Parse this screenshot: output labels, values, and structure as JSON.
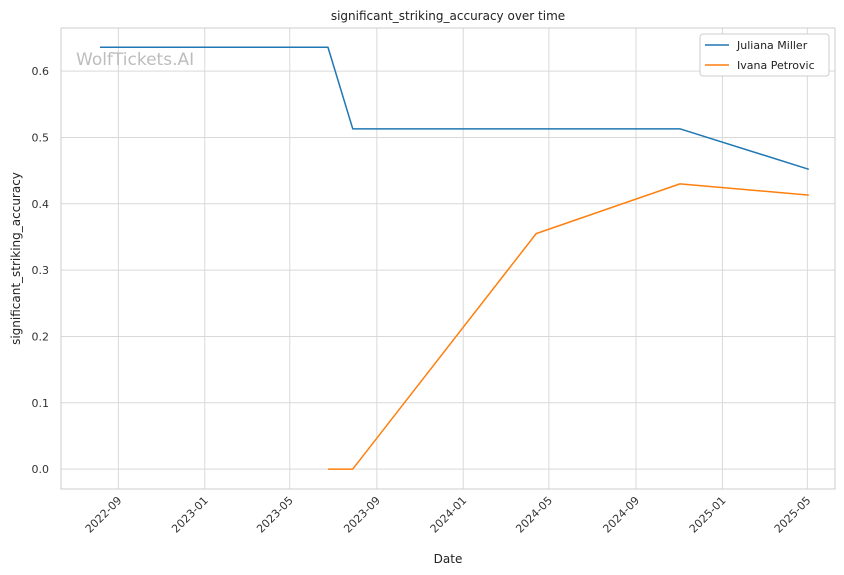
{
  "chart_data": {
    "type": "line",
    "title": "significant_striking_accuracy over time",
    "xlabel": "Date",
    "ylabel": "significant_striking_accuracy",
    "watermark": "WolfTickets.AI",
    "x_tick_labels": [
      "2022-09",
      "2023-01",
      "2023-05",
      "2023-09",
      "2024-01",
      "2024-05",
      "2024-09",
      "2025-01",
      "2025-05"
    ],
    "x_tick_dates": [
      "2022-09-01",
      "2023-01-01",
      "2023-05-01",
      "2023-09-01",
      "2024-01-01",
      "2024-05-01",
      "2024-09-01",
      "2025-01-01",
      "2025-05-01"
    ],
    "xlim": [
      "2022-06-12",
      "2025-06-09"
    ],
    "y_ticks": [
      "0.0",
      "0.1",
      "0.2",
      "0.3",
      "0.4",
      "0.5",
      "0.6"
    ],
    "ylim": [
      -0.03,
      0.665
    ],
    "grid": true,
    "legend_position": "top-right",
    "series": [
      {
        "name": "Juliana Miller",
        "color": "#1f77b4",
        "points": [
          {
            "x": "2022-08-06",
            "y": 0.636
          },
          {
            "x": "2023-06-24",
            "y": 0.636
          },
          {
            "x": "2023-07-29",
            "y": 0.513
          },
          {
            "x": "2024-11-02",
            "y": 0.513
          },
          {
            "x": "2025-05-03",
            "y": 0.452
          }
        ]
      },
      {
        "name": "Ivana Petrovic",
        "color": "#ff7f0e",
        "points": [
          {
            "x": "2023-06-24",
            "y": 0.0
          },
          {
            "x": "2023-07-29",
            "y": 0.0
          },
          {
            "x": "2024-04-13",
            "y": 0.355
          },
          {
            "x": "2024-11-02",
            "y": 0.43
          },
          {
            "x": "2025-05-03",
            "y": 0.413
          }
        ]
      }
    ]
  }
}
